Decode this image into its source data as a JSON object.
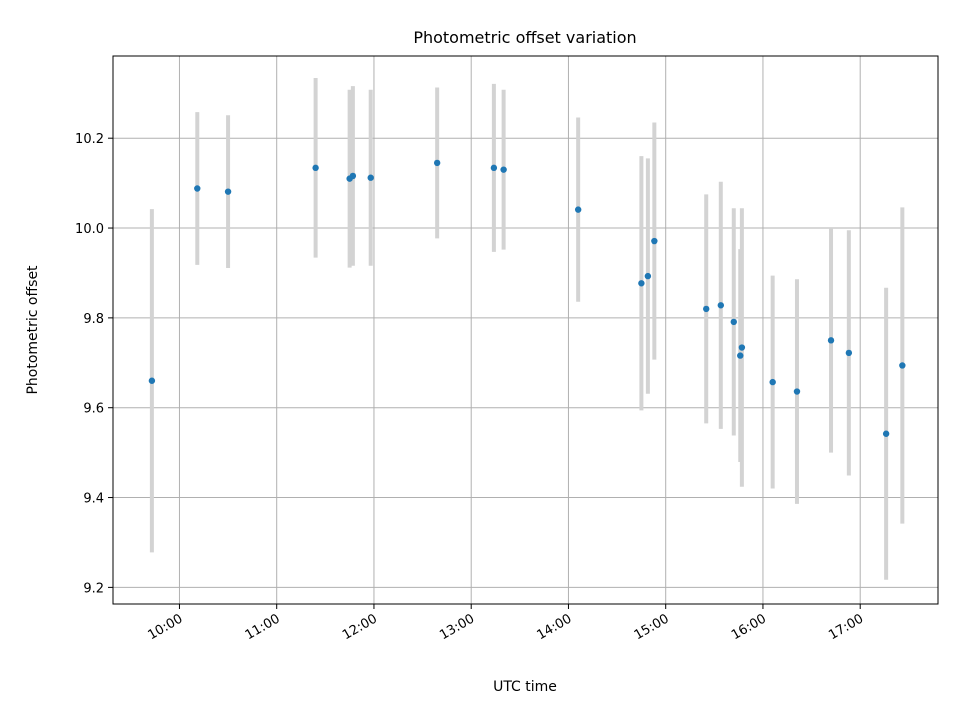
{
  "chart_data": {
    "type": "scatter",
    "title": "Photometric offset variation",
    "xlabel": "UTC time",
    "ylabel": "Photometric offset",
    "grid": true,
    "colors": {
      "point": "#1f77b4",
      "errorbar": "#d3d3d3"
    },
    "x_ticks": [
      "10:00",
      "11:00",
      "12:00",
      "13:00",
      "14:00",
      "15:00",
      "16:00",
      "17:00"
    ],
    "y_ticks": [
      9.2,
      9.4,
      9.6,
      9.8,
      10.0,
      10.2
    ],
    "y_tick_labels": [
      "9.2",
      "9.4",
      "9.6",
      "9.8",
      "10.0",
      "10.2"
    ],
    "xlim": [
      "09:19",
      "17:48"
    ],
    "ylim": [
      9.163,
      10.383
    ],
    "points": [
      {
        "x": "09:43",
        "y": 9.66,
        "err": 0.382
      },
      {
        "x": "10:11",
        "y": 10.088,
        "err": 0.17
      },
      {
        "x": "10:30",
        "y": 10.081,
        "err": 0.17
      },
      {
        "x": "11:24",
        "y": 10.134,
        "err": 0.2
      },
      {
        "x": "11:45",
        "y": 10.11,
        "err": 0.198
      },
      {
        "x": "11:47",
        "y": 10.116,
        "err": 0.2
      },
      {
        "x": "11:58",
        "y": 10.112,
        "err": 0.196
      },
      {
        "x": "12:39",
        "y": 10.145,
        "err": 0.168
      },
      {
        "x": "13:14",
        "y": 10.134,
        "err": 0.187
      },
      {
        "x": "13:20",
        "y": 10.13,
        "err": 0.178
      },
      {
        "x": "14:06",
        "y": 10.041,
        "err": 0.205
      },
      {
        "x": "14:45",
        "y": 9.877,
        "err": 0.283
      },
      {
        "x": "14:49",
        "y": 9.893,
        "err": 0.262
      },
      {
        "x": "14:53",
        "y": 9.971,
        "err": 0.264
      },
      {
        "x": "15:25",
        "y": 9.82,
        "err": 0.255
      },
      {
        "x": "15:34",
        "y": 9.828,
        "err": 0.275
      },
      {
        "x": "15:42",
        "y": 9.791,
        "err": 0.253
      },
      {
        "x": "15:46",
        "y": 9.716,
        "err": 0.237
      },
      {
        "x": "15:47",
        "y": 9.734,
        "err": 0.31
      },
      {
        "x": "16:06",
        "y": 9.657,
        "err": 0.237
      },
      {
        "x": "16:21",
        "y": 9.636,
        "err": 0.25
      },
      {
        "x": "16:42",
        "y": 9.75,
        "err": 0.25
      },
      {
        "x": "16:53",
        "y": 9.722,
        "err": 0.273
      },
      {
        "x": "17:16",
        "y": 9.542,
        "err": 0.325
      },
      {
        "x": "17:26",
        "y": 9.694,
        "err": 0.352
      }
    ]
  }
}
